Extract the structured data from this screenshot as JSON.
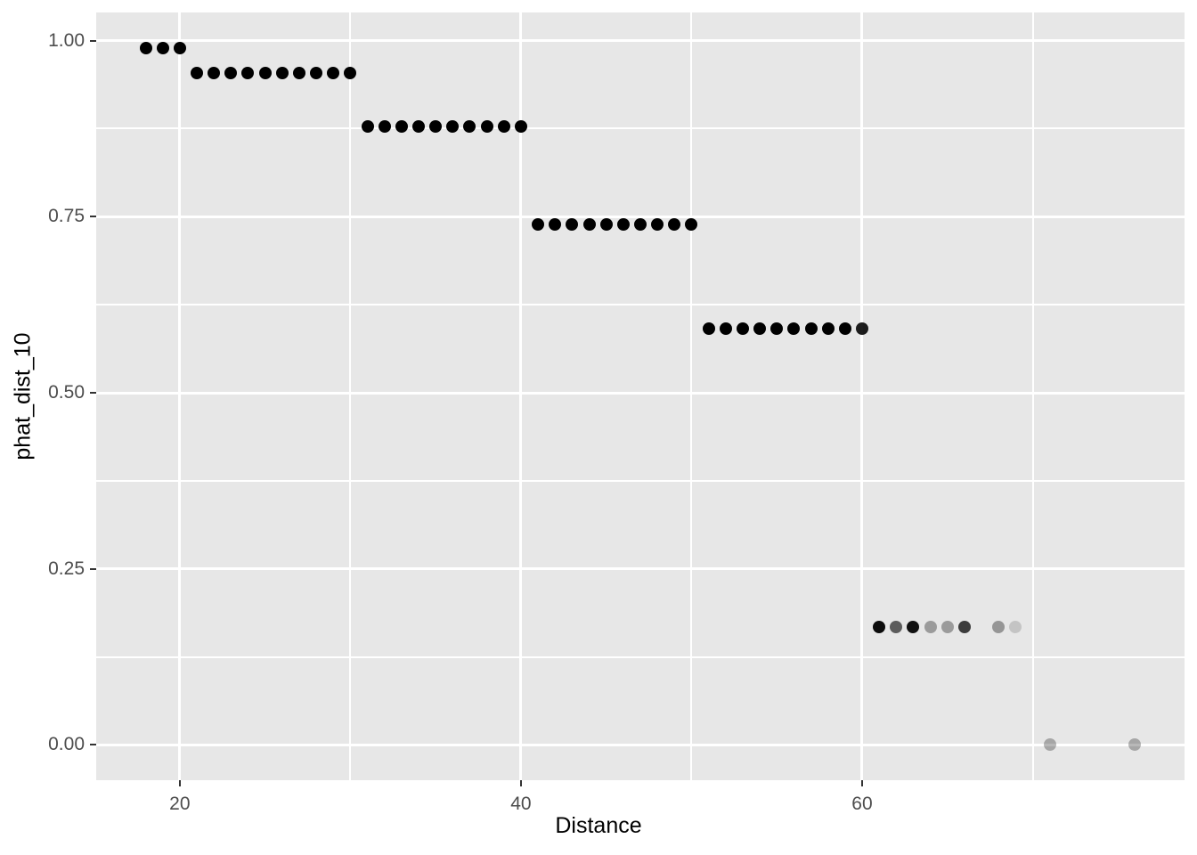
{
  "chart_data": {
    "type": "scatter",
    "title": "",
    "xlabel": "Distance",
    "ylabel": "phat_dist_10",
    "xlim": [
      15.1,
      78.9
    ],
    "ylim": [
      -0.05,
      1.04
    ],
    "legend_position": "none",
    "grid": {
      "major": true,
      "minor": true
    },
    "x_ticks": [
      {
        "value": 20,
        "label": "20"
      },
      {
        "value": 40,
        "label": "40"
      },
      {
        "value": 60,
        "label": "60"
      }
    ],
    "y_ticks": [
      {
        "value": 0.0,
        "label": "0.00"
      },
      {
        "value": 0.25,
        "label": "0.25"
      },
      {
        "value": 0.5,
        "label": "0.50"
      },
      {
        "value": 0.75,
        "label": "0.75"
      },
      {
        "value": 1.0,
        "label": "1.00"
      }
    ],
    "x_minor_gridlines": [
      30,
      50,
      70
    ],
    "y_minor_gridlines": [
      0.125,
      0.375,
      0.625,
      0.875
    ],
    "colors": {
      "panel_bg": "#e7e7e7",
      "grid": "#ffffff",
      "point": "#000000",
      "tick_label": "#4d4d4d",
      "tick_mark": "#333333",
      "axis_title": "#000000"
    },
    "series": [
      {
        "name": "phat_dist_10",
        "points": [
          {
            "x": 18,
            "y": 0.99,
            "a": 1
          },
          {
            "x": 19,
            "y": 0.99,
            "a": 1
          },
          {
            "x": 20,
            "y": 0.99,
            "a": 1
          },
          {
            "x": 21,
            "y": 0.954,
            "a": 1
          },
          {
            "x": 22,
            "y": 0.954,
            "a": 1
          },
          {
            "x": 23,
            "y": 0.954,
            "a": 1
          },
          {
            "x": 24,
            "y": 0.954,
            "a": 1
          },
          {
            "x": 25,
            "y": 0.954,
            "a": 1
          },
          {
            "x": 26,
            "y": 0.954,
            "a": 1
          },
          {
            "x": 27,
            "y": 0.954,
            "a": 1
          },
          {
            "x": 28,
            "y": 0.954,
            "a": 1
          },
          {
            "x": 29,
            "y": 0.954,
            "a": 1
          },
          {
            "x": 30,
            "y": 0.954,
            "a": 1
          },
          {
            "x": 31,
            "y": 0.878,
            "a": 1
          },
          {
            "x": 32,
            "y": 0.878,
            "a": 1
          },
          {
            "x": 33,
            "y": 0.878,
            "a": 1
          },
          {
            "x": 34,
            "y": 0.878,
            "a": 1
          },
          {
            "x": 35,
            "y": 0.878,
            "a": 1
          },
          {
            "x": 36,
            "y": 0.878,
            "a": 1
          },
          {
            "x": 37,
            "y": 0.878,
            "a": 1
          },
          {
            "x": 38,
            "y": 0.878,
            "a": 1
          },
          {
            "x": 39,
            "y": 0.878,
            "a": 1
          },
          {
            "x": 40,
            "y": 0.878,
            "a": 1
          },
          {
            "x": 41,
            "y": 0.739,
            "a": 1
          },
          {
            "x": 42,
            "y": 0.739,
            "a": 1
          },
          {
            "x": 43,
            "y": 0.739,
            "a": 1
          },
          {
            "x": 44,
            "y": 0.739,
            "a": 1
          },
          {
            "x": 45,
            "y": 0.739,
            "a": 1
          },
          {
            "x": 46,
            "y": 0.739,
            "a": 1
          },
          {
            "x": 47,
            "y": 0.739,
            "a": 1
          },
          {
            "x": 48,
            "y": 0.739,
            "a": 1
          },
          {
            "x": 49,
            "y": 0.739,
            "a": 1
          },
          {
            "x": 50,
            "y": 0.739,
            "a": 1
          },
          {
            "x": 51,
            "y": 0.591,
            "a": 1
          },
          {
            "x": 52,
            "y": 0.591,
            "a": 1
          },
          {
            "x": 53,
            "y": 0.591,
            "a": 1
          },
          {
            "x": 54,
            "y": 0.591,
            "a": 1
          },
          {
            "x": 55,
            "y": 0.591,
            "a": 1
          },
          {
            "x": 56,
            "y": 0.591,
            "a": 1
          },
          {
            "x": 57,
            "y": 0.591,
            "a": 1
          },
          {
            "x": 58,
            "y": 0.591,
            "a": 1
          },
          {
            "x": 59,
            "y": 0.591,
            "a": 1
          },
          {
            "x": 60,
            "y": 0.591,
            "a": 0.88
          },
          {
            "x": 61,
            "y": 0.168,
            "a": 0.95
          },
          {
            "x": 62,
            "y": 0.168,
            "a": 0.6
          },
          {
            "x": 63,
            "y": 0.168,
            "a": 0.93
          },
          {
            "x": 64,
            "y": 0.168,
            "a": 0.33
          },
          {
            "x": 65,
            "y": 0.168,
            "a": 0.33
          },
          {
            "x": 66,
            "y": 0.168,
            "a": 0.74
          },
          {
            "x": 68,
            "y": 0.168,
            "a": 0.35
          },
          {
            "x": 69,
            "y": 0.168,
            "a": 0.15
          },
          {
            "x": 71,
            "y": 0.0,
            "a": 0.28
          },
          {
            "x": 76,
            "y": 0.0,
            "a": 0.28
          }
        ]
      }
    ]
  }
}
